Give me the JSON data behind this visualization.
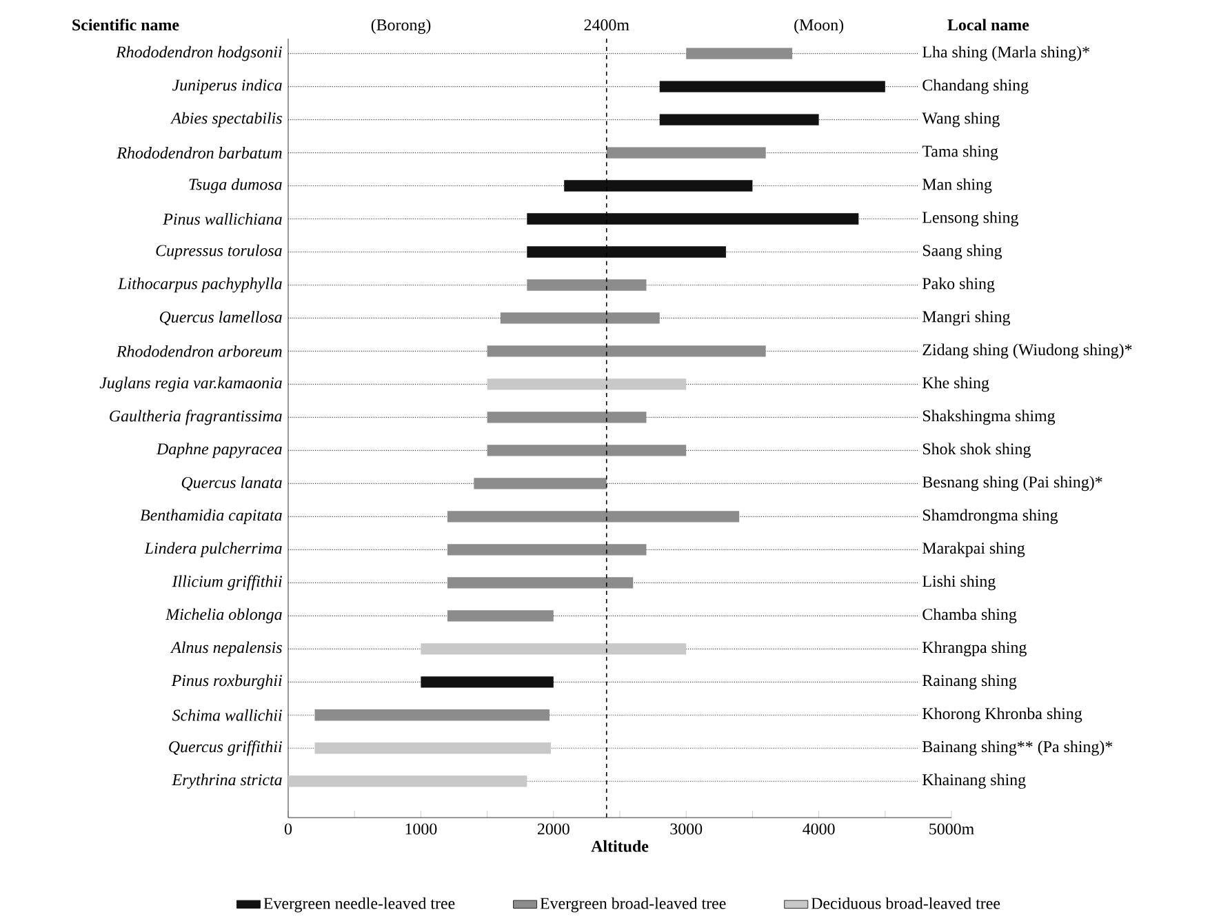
{
  "chart_data": {
    "type": "bar",
    "orientation": "horizontal",
    "xlabel": "Altitude",
    "ylabel": "Scientific name",
    "y2label": "Local name",
    "categories": [
      "Rhododendron hodgsonii",
      "Juniperus indica",
      "Abies spectabilis",
      "Rhododendron barbatum",
      "Tsuga dumosa",
      "Pinus wallichiana",
      "Cupressus torulosa",
      "Lithocarpus pachyphylla",
      "Quercus lamellosa",
      "Rhododendron arboreum",
      "Juglans regia var.kamaonia",
      "Gaultheria fragrantissima",
      "Daphne papyracea",
      "Quercus lanata",
      "Benthamidia capitata",
      "Lindera pulcherrima",
      "Illicium griffithii",
      "Michelia oblonga",
      "Alnus nepalensis",
      "Pinus roxburghii",
      "Schima wallichii",
      "Quercus griffithii",
      "Erythrina stricta"
    ],
    "y2_categories": [
      "Lha shing (Marla shing)*",
      "Chandang shing",
      "Wang shing",
      "Tama shing",
      "Man shing",
      "Lensong shing",
      "Saang shing",
      "Pako shing",
      "Mangri shing",
      "Zidang shing (Wiudong shing)*",
      "Khe shing",
      "Shakshingma shimg",
      "Shok shok shing",
      "Besnang shing (Pai shing)*",
      "Shamdrongma shing",
      "Marakpai shing",
      "Lishi shing",
      "Chamba shing",
      "Khrangpa shing",
      "Rainang shing",
      "Khorong Khronba shing",
      "Bainang shing** (Pa shing)*",
      "Khainang shing"
    ],
    "series": [
      {
        "name": "Evergreen needle-leaved tree",
        "color": "#111111",
        "base": [
          null,
          2800,
          2800,
          null,
          2080,
          1800,
          1800,
          null,
          null,
          null,
          null,
          null,
          null,
          null,
          null,
          null,
          null,
          null,
          null,
          1000,
          null,
          null,
          null
        ],
        "values": [
          null,
          1700,
          1200,
          null,
          1420,
          2500,
          1500,
          null,
          null,
          null,
          null,
          null,
          null,
          null,
          null,
          null,
          null,
          null,
          null,
          1000,
          null,
          null,
          null
        ]
      },
      {
        "name": "Evergreen broad-leaved tree",
        "color": "#8c8c8c",
        "base": [
          3000,
          null,
          null,
          2400,
          null,
          null,
          null,
          1800,
          1600,
          1500,
          null,
          1500,
          1500,
          1400,
          1200,
          1200,
          1200,
          1200,
          null,
          null,
          200,
          null,
          null
        ],
        "values": [
          800,
          null,
          null,
          1200,
          null,
          null,
          null,
          900,
          1200,
          2100,
          null,
          1200,
          1500,
          1000,
          2200,
          1500,
          1400,
          800,
          null,
          null,
          1770,
          null,
          null
        ]
      },
      {
        "name": "Deciduous broad-leaved tree",
        "color": "#c8c8c8",
        "base": [
          null,
          null,
          null,
          null,
          null,
          null,
          null,
          null,
          null,
          null,
          1500,
          null,
          null,
          null,
          null,
          null,
          null,
          null,
          1000,
          null,
          null,
          200,
          0
        ],
        "values": [
          null,
          null,
          null,
          null,
          null,
          null,
          null,
          null,
          null,
          null,
          1500,
          null,
          null,
          null,
          null,
          null,
          null,
          null,
          2000,
          null,
          null,
          1780,
          1800
        ]
      }
    ],
    "xlim": [
      0,
      5000
    ],
    "xticks": [
      0,
      {
        "value": 500,
        "label": null
      },
      1000,
      {
        "value": 1500,
        "label": null
      },
      2000,
      {
        "value": 2500,
        "label": null
      },
      3000,
      {
        "value": 3500,
        "label": null
      },
      4000,
      {
        "value": 4500,
        "label": null
      },
      {
        "value": 5000,
        "label": "5000m"
      }
    ],
    "ref_lines": [
      {
        "axis": "x",
        "value": 2400,
        "label": "2400m",
        "line_style": "dashed"
      }
    ],
    "annotations": [
      "(Borong)",
      "(Moon)"
    ],
    "grid": "y",
    "legend": "bottom"
  }
}
